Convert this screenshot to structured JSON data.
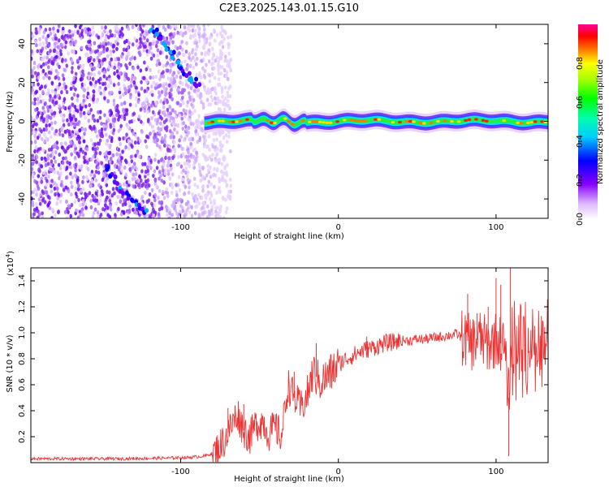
{
  "figure_title": "C2E3.2025.143.01.15.G10",
  "chart_data": [
    {
      "type": "heatmap",
      "title": "C2E3.2025.143.01.15.G10",
      "xlabel": "Height of straight line (km)",
      "ylabel": "Frequency (Hz)",
      "xlim": [
        -195,
        133
      ],
      "ylim": [
        -50,
        50
      ],
      "xticks": [
        -100,
        0,
        100
      ],
      "yticks": [
        -40,
        -20,
        0,
        20,
        40
      ],
      "colorbar": {
        "label": "Normalized spectral amplitude",
        "range": [
          0.0,
          1.0
        ],
        "ticks": [
          "0.0",
          "0.2",
          "0.4",
          "0.6",
          "0.8"
        ],
        "colormap": [
          "#ffffff",
          "#8800ff",
          "#0000ff",
          "#00ffff",
          "#00ff00",
          "#ffff00",
          "#ff0000",
          "#ff00aa"
        ]
      },
      "features": {
        "noise_region_x": [
          -195,
          -80
        ],
        "carrier_line": {
          "x_start": -85,
          "x_end": 133,
          "frequency": 0,
          "peak_amplitude": 0.95
        },
        "diagonal_trace_upper": [
          [
            -118,
            48
          ],
          [
            -108,
            38
          ],
          [
            -98,
            25
          ],
          [
            -88,
            18
          ]
        ],
        "diagonal_trace_lower": [
          [
            -148,
            -22
          ],
          [
            -135,
            -38
          ],
          [
            -122,
            -48
          ]
        ]
      }
    },
    {
      "type": "line",
      "xlabel": "Height of straight line (km)",
      "ylabel": "SNR (10 * v/v)",
      "scale_label": "(x10",
      "scale_exp": "4",
      "xlim": [
        -195,
        133
      ],
      "ylim": [
        0,
        1.5
      ],
      "xticks": [
        -100,
        0,
        100
      ],
      "yticks": [
        0.2,
        0.4,
        0.6,
        0.8,
        1.0,
        1.2,
        1.4
      ],
      "ytick_labels": [
        "0.2",
        "0.4",
        "0.6",
        "0.8",
        "1.0",
        "1.2",
        "1.4"
      ],
      "color": "#ee3333",
      "series": [
        {
          "x": [
            -195,
            -170,
            -140,
            -110,
            -95,
            -85,
            -78,
            -72,
            -68,
            -64,
            -60,
            -56,
            -52,
            -48,
            -44,
            -40,
            -36,
            -32,
            -28,
            -24,
            -20,
            -16,
            -12,
            -8,
            -4,
            0,
            5,
            10,
            15,
            20,
            25,
            30,
            35,
            40,
            45,
            50,
            55,
            60,
            65,
            70,
            75,
            80,
            85,
            90,
            95,
            100,
            105,
            108,
            110,
            115,
            120,
            125,
            133
          ],
          "y": [
            0.03,
            0.03,
            0.03,
            0.035,
            0.04,
            0.05,
            0.08,
            0.18,
            0.28,
            0.38,
            0.25,
            0.2,
            0.3,
            0.32,
            0.22,
            0.27,
            0.2,
            0.6,
            0.5,
            0.42,
            0.5,
            0.7,
            0.62,
            0.65,
            0.7,
            0.76,
            0.8,
            0.83,
            0.86,
            0.88,
            0.9,
            0.92,
            0.93,
            0.94,
            0.94,
            0.95,
            0.95,
            0.96,
            0.97,
            0.98,
            0.99,
            0.95,
            0.92,
            0.96,
            0.9,
            0.95,
            0.9,
            0.5,
            0.98,
            0.97,
            0.97,
            0.98,
            0.98
          ]
        }
      ],
      "spikes": [
        {
          "x": -70,
          "y": 0.42
        },
        {
          "x": -60,
          "y": 0.45
        },
        {
          "x": -42,
          "y": 0.38
        },
        {
          "x": -28,
          "y": 0.7
        },
        {
          "x": -14,
          "y": 0.92
        },
        {
          "x": 18,
          "y": 0.97
        },
        {
          "x": 82,
          "y": 1.3
        },
        {
          "x": 88,
          "y": 1.15
        },
        {
          "x": 95,
          "y": 1.2
        },
        {
          "x": 100,
          "y": 1.42
        },
        {
          "x": 103,
          "y": 1.37
        },
        {
          "x": 108,
          "y": 0.05
        },
        {
          "x": 109,
          "y": 1.5
        }
      ]
    }
  ]
}
